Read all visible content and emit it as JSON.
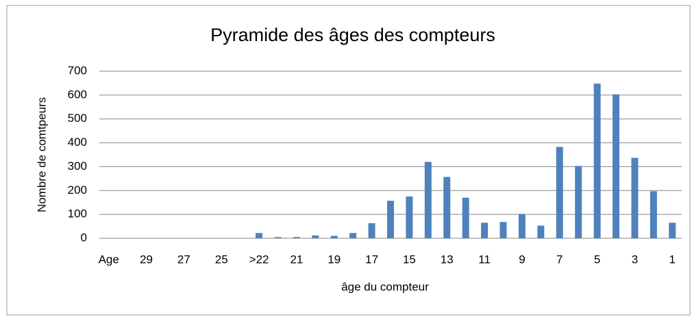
{
  "chart_data": {
    "type": "bar",
    "title": "Pyramide des âges des compteurs",
    "x_label": "âge du compteur",
    "y_label": "Nombre de comtpeurs",
    "categories": [
      "Age",
      null,
      "29",
      null,
      "27",
      null,
      "25",
      null,
      ">22",
      null,
      "21",
      null,
      "19",
      null,
      "17",
      null,
      "15",
      null,
      "13",
      null,
      "11",
      null,
      "9",
      null,
      "7",
      null,
      "5",
      null,
      "3",
      null,
      "1"
    ],
    "values": [
      0,
      0,
      0,
      0,
      0,
      0,
      0,
      0,
      22,
      5,
      5,
      12,
      10,
      22,
      63,
      157,
      175,
      320,
      257,
      170,
      65,
      68,
      102,
      53,
      383,
      303,
      648,
      603,
      337,
      197,
      65
    ],
    "color": "#4f81bd",
    "ylim": [
      0,
      700
    ],
    "yticks": [
      0,
      100,
      200,
      300,
      400,
      500,
      600,
      700
    ],
    "grid": true
  }
}
